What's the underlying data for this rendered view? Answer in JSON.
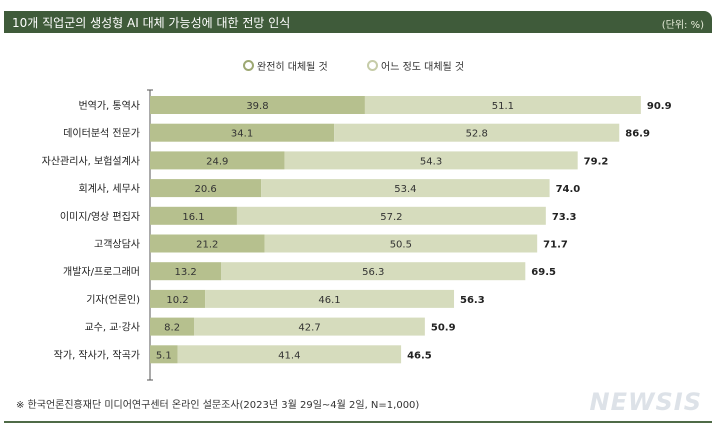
{
  "chart_data": {
    "type": "bar",
    "stacked": true,
    "orientation": "horizontal",
    "title": "10개 직업군의 생성형 AI 대체 가능성에 대한 전망 인식",
    "unit": "(단위: %)",
    "categories": [
      "번역가, 통역사",
      "데이터분석 전문가",
      "자산관리사, 보험설계사",
      "회계사, 세무사",
      "이미지/영상 편집자",
      "고객상담사",
      "개발자/프로그래머",
      "기자(언론인)",
      "교수, 교·강사",
      "작가, 작사가, 작곡가"
    ],
    "series": [
      {
        "name": "완전히 대체될 것",
        "color": "#b6c08e",
        "values": [
          39.8,
          34.1,
          24.9,
          20.6,
          16.1,
          21.2,
          13.2,
          10.2,
          8.2,
          5.1
        ]
      },
      {
        "name": "어느 정도 대체될 것",
        "color": "#d6dcbd",
        "values": [
          51.1,
          52.8,
          54.3,
          53.4,
          57.2,
          50.5,
          56.3,
          46.1,
          42.7,
          41.4
        ]
      }
    ],
    "totals": [
      "90.9",
      "86.9",
      "79.2",
      "74.0",
      "73.3",
      "71.7",
      "69.5",
      "56.3",
      "50.9",
      "46.5"
    ],
    "xlim": [
      0,
      100
    ],
    "grid": false,
    "legend": "top-center"
  },
  "footnote": "※ 한국언론진흥재단 미디어연구센터 온라인 설문조사(2023년 3월 29일~4월 2일, N=1,000)",
  "logo": "NEWSIS",
  "colors": {
    "header": "#3f5b3a"
  }
}
